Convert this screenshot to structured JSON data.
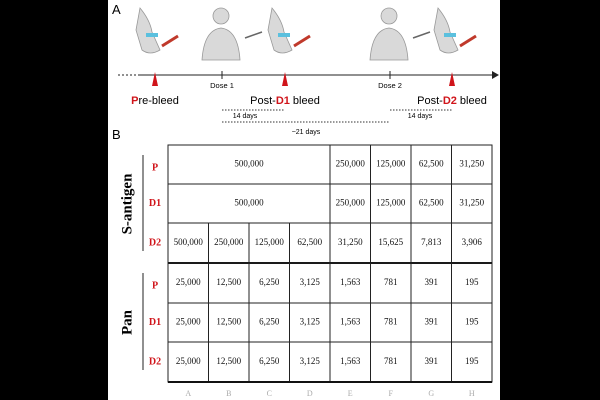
{
  "panel_a": {
    "label": "A",
    "events": [
      {
        "parts": [
          "P",
          "re-bleed"
        ]
      },
      {
        "parts": [
          "Post-",
          "D1",
          " bleed"
        ]
      },
      {
        "parts": [
          "Post-",
          "D2",
          " bleed"
        ]
      }
    ],
    "doses": [
      "Dose 1",
      "Dose 2"
    ],
    "intervals": [
      "14 days",
      "~21 days",
      "14 days"
    ]
  },
  "panel_b": {
    "label": "B",
    "columns": [
      "A",
      "B",
      "C",
      "D",
      "E",
      "F",
      "G",
      "H"
    ],
    "groups": [
      {
        "name": "S-antigen",
        "rows": [
          {
            "label": "P",
            "cells": [
              "500,000",
              "250,000",
              "125,000",
              "62,500",
              "31,250"
            ]
          },
          {
            "label": "D1",
            "cells": [
              "500,000",
              "250,000",
              "125,000",
              "62,500",
              "31,250"
            ]
          },
          {
            "label": "D2",
            "cells": [
              "500,000",
              "250,000",
              "125,000",
              "62,500",
              "31,250",
              "15,625",
              "7,813",
              "3,906"
            ]
          }
        ]
      },
      {
        "name": "Pan",
        "rows": [
          {
            "label": "P",
            "cells": [
              "25,000",
              "12,500",
              "6,250",
              "3,125",
              "1,563",
              "781",
              "391",
              "195"
            ]
          },
          {
            "label": "D1",
            "cells": [
              "25,000",
              "12,500",
              "6,250",
              "3,125",
              "1,563",
              "781",
              "391",
              "195"
            ]
          },
          {
            "label": "D2",
            "cells": [
              "25,000",
              "12,500",
              "6,250",
              "3,125",
              "1,563",
              "781",
              "391",
              "195"
            ]
          }
        ]
      }
    ]
  }
}
